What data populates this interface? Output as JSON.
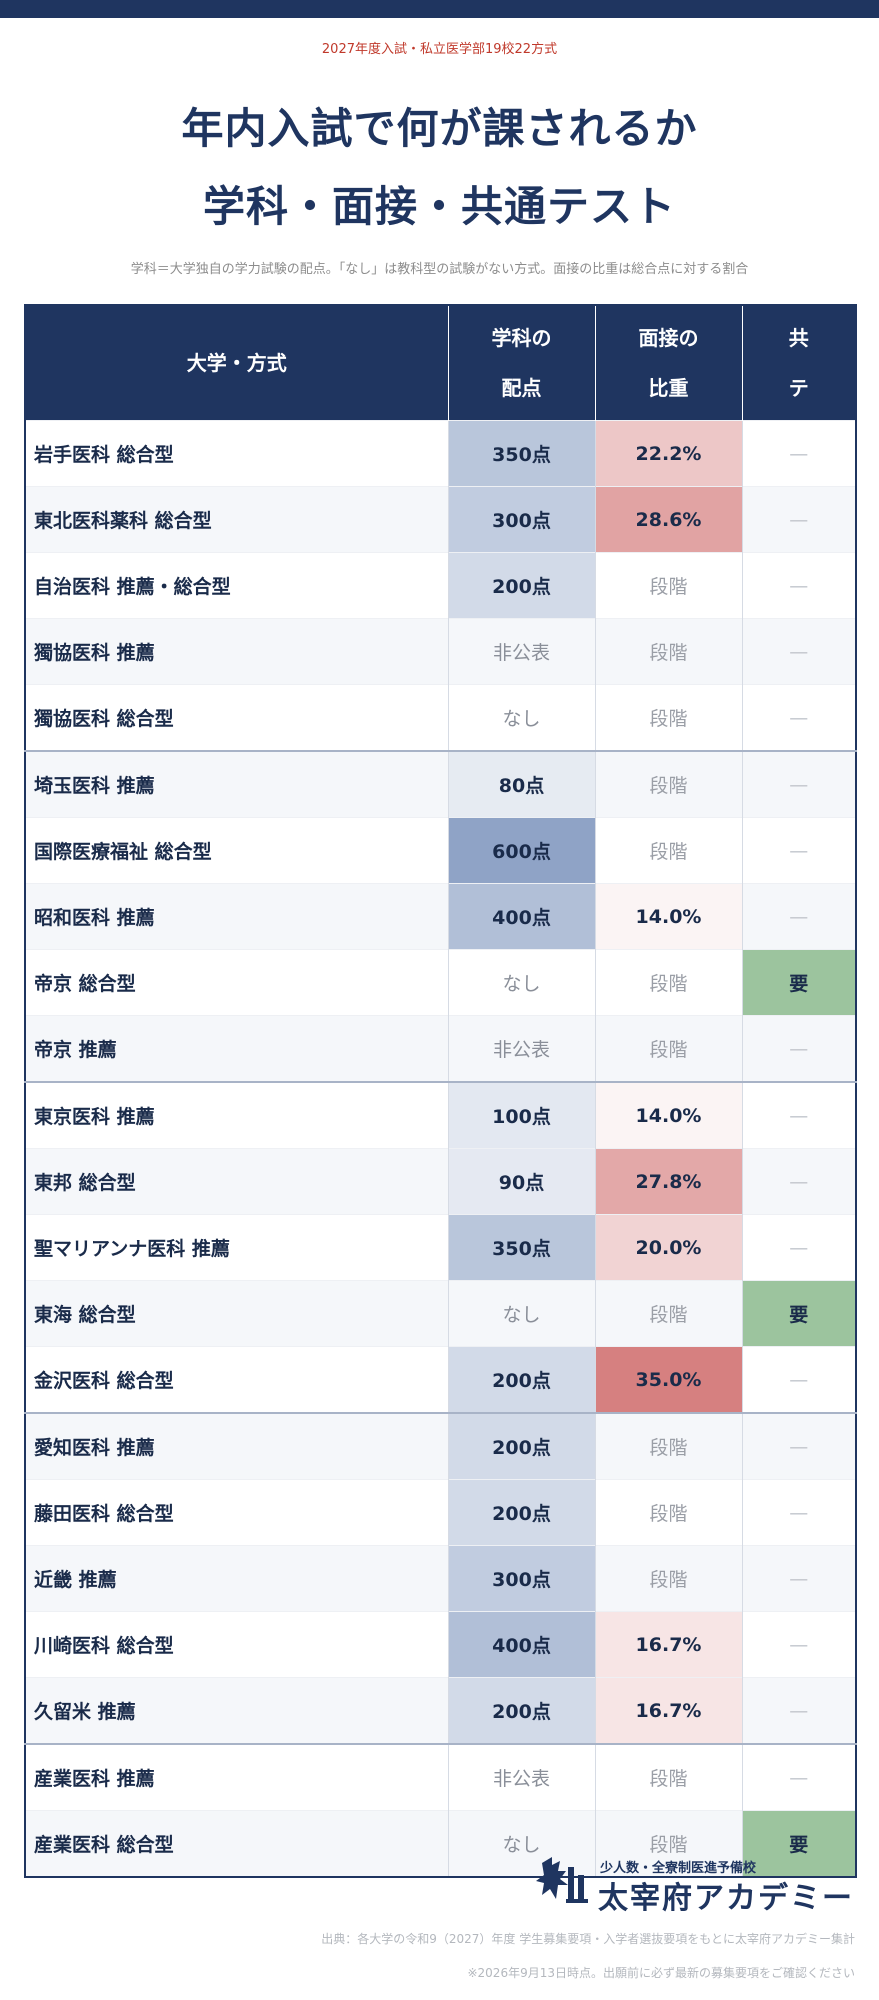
{
  "header": {
    "eyebrow": "2027年度入試・私立医学部19校22方式",
    "title_line1": "年内入試で何が課されるか",
    "title_line2": "学科・面接・共通テスト",
    "note": "学科＝大学独自の学力試験の配点。「なし」は教科型の試験がない方式。面接の比重は総合点に対する割合"
  },
  "table": {
    "columns": {
      "name": "大学・方式",
      "score_l1": "学科の",
      "score_l2": "配点",
      "interview_l1": "面接の",
      "interview_l2": "比重",
      "kyote_l1": "共",
      "kyote_l2": "テ"
    },
    "rows": [
      {
        "name": "岩手医科 総合型",
        "score": "350点",
        "score_level": 350,
        "interview": "22.2%",
        "interview_ratio": 22.2,
        "kyote": "—",
        "kyote_required": false
      },
      {
        "name": "東北医科薬科 総合型",
        "score": "300点",
        "score_level": 300,
        "interview": "28.6%",
        "interview_ratio": 28.6,
        "kyote": "—",
        "kyote_required": false
      },
      {
        "name": "自治医科 推薦・総合型",
        "score": "200点",
        "score_level": 200,
        "interview": "段階",
        "interview_ratio": null,
        "kyote": "—",
        "kyote_required": false
      },
      {
        "name": "獨協医科 推薦",
        "score": "非公表",
        "score_level": null,
        "interview": "段階",
        "interview_ratio": null,
        "kyote": "—",
        "kyote_required": false
      },
      {
        "name": "獨協医科 総合型",
        "score": "なし",
        "score_level": null,
        "interview": "段階",
        "interview_ratio": null,
        "kyote": "—",
        "kyote_required": false
      },
      {
        "name": "埼玉医科 推薦",
        "score": "80点",
        "score_level": 80,
        "interview": "段階",
        "interview_ratio": null,
        "kyote": "—",
        "kyote_required": false,
        "group_start": true
      },
      {
        "name": "国際医療福祉 総合型",
        "score": "600点",
        "score_level": 600,
        "interview": "段階",
        "interview_ratio": null,
        "kyote": "—",
        "kyote_required": false
      },
      {
        "name": "昭和医科 推薦",
        "score": "400点",
        "score_level": 400,
        "interview": "14.0%",
        "interview_ratio": 14.0,
        "kyote": "—",
        "kyote_required": false
      },
      {
        "name": "帝京 総合型",
        "score": "なし",
        "score_level": null,
        "interview": "段階",
        "interview_ratio": null,
        "kyote": "要",
        "kyote_required": true
      },
      {
        "name": "帝京 推薦",
        "score": "非公表",
        "score_level": null,
        "interview": "段階",
        "interview_ratio": null,
        "kyote": "—",
        "kyote_required": false
      },
      {
        "name": "東京医科 推薦",
        "score": "100点",
        "score_level": 100,
        "interview": "14.0%",
        "interview_ratio": 14.0,
        "kyote": "—",
        "kyote_required": false,
        "group_start": true
      },
      {
        "name": "東邦 総合型",
        "score": "90点",
        "score_level": 90,
        "interview": "27.8%",
        "interview_ratio": 27.8,
        "kyote": "—",
        "kyote_required": false
      },
      {
        "name": "聖マリアンナ医科 推薦",
        "score": "350点",
        "score_level": 350,
        "interview": "20.0%",
        "interview_ratio": 20.0,
        "kyote": "—",
        "kyote_required": false
      },
      {
        "name": "東海 総合型",
        "score": "なし",
        "score_level": null,
        "interview": "段階",
        "interview_ratio": null,
        "kyote": "要",
        "kyote_required": true
      },
      {
        "name": "金沢医科 総合型",
        "score": "200点",
        "score_level": 200,
        "interview": "35.0%",
        "interview_ratio": 35.0,
        "kyote": "—",
        "kyote_required": false
      },
      {
        "name": "愛知医科 推薦",
        "score": "200点",
        "score_level": 200,
        "interview": "段階",
        "interview_ratio": null,
        "kyote": "—",
        "kyote_required": false,
        "group_start": true
      },
      {
        "name": "藤田医科 総合型",
        "score": "200点",
        "score_level": 200,
        "interview": "段階",
        "interview_ratio": null,
        "kyote": "—",
        "kyote_required": false
      },
      {
        "name": "近畿 推薦",
        "score": "300点",
        "score_level": 300,
        "interview": "段階",
        "interview_ratio": null,
        "kyote": "—",
        "kyote_required": false
      },
      {
        "name": "川崎医科 総合型",
        "score": "400点",
        "score_level": 400,
        "interview": "16.7%",
        "interview_ratio": 16.7,
        "kyote": "—",
        "kyote_required": false
      },
      {
        "name": "久留米 推薦",
        "score": "200点",
        "score_level": 200,
        "interview": "16.7%",
        "interview_ratio": 16.7,
        "kyote": "—",
        "kyote_required": false
      },
      {
        "name": "産業医科 推薦",
        "score": "非公表",
        "score_level": null,
        "interview": "段階",
        "interview_ratio": null,
        "kyote": "—",
        "kyote_required": false,
        "group_start": true
      },
      {
        "name": "産業医科 総合型",
        "score": "なし",
        "score_level": null,
        "interview": "段階",
        "interview_ratio": null,
        "kyote": "要",
        "kyote_required": true
      }
    ]
  },
  "colors": {
    "navy": "#1f3560",
    "score_heat": "#8fa3c6",
    "interview_heat": "#d68080",
    "kyote_required": "#9cc49e",
    "eyebrow": "#c0392b"
  },
  "footer": {
    "logo_sub": "少人数・全寮制医進予備校",
    "logo_main": "太宰府アカデミー",
    "logo_icon": "academy-logo-icon",
    "source": "出典：各大学の令和9（2027）年度 学生募集要項・入学者選抜要項をもとに太宰府アカデミー集計",
    "disclaimer": "※2026年9月13日時点。出願前に必ず最新の募集要項をご確認ください"
  }
}
